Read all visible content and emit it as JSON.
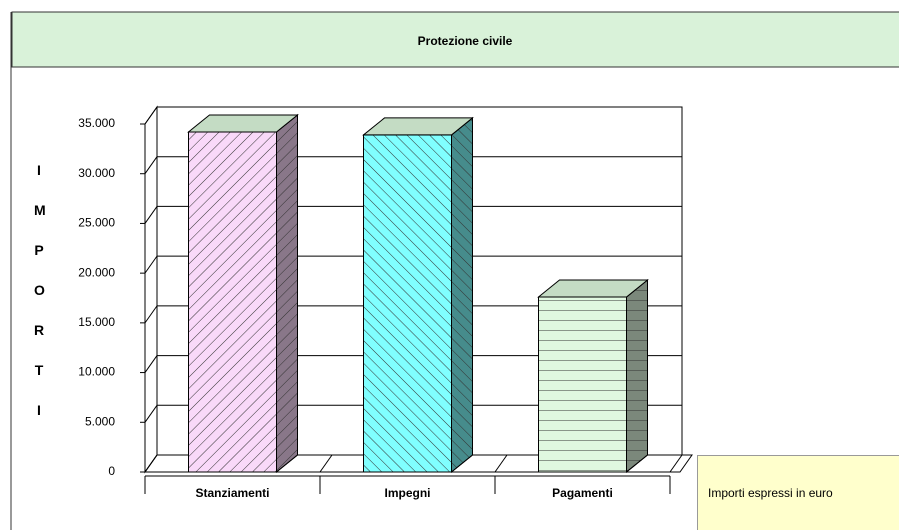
{
  "chart_data": {
    "type": "bar3d",
    "title": "Protezione civile",
    "y_label": "IMPORTI",
    "note": "Importi espressi in euro",
    "categories": [
      "Stanziamenti",
      "Impegni",
      "Pagamenti"
    ],
    "values": [
      34200,
      33900,
      17600
    ],
    "colors": [
      "#f9d9f9",
      "#80ffff",
      "#e0f8e0"
    ],
    "ylim": [
      0,
      35000
    ],
    "yticks": [
      0,
      {
        "value": 5000,
        "label": "5.000"
      },
      {
        "value": 10000,
        "label": "10.000"
      },
      {
        "value": 15000,
        "label": "15.000"
      },
      {
        "value": 20000,
        "label": "20.000"
      },
      {
        "value": 25000,
        "label": "25.000"
      },
      {
        "value": 30000,
        "label": "30.000"
      },
      {
        "value": 35000,
        "label": "35.000"
      }
    ],
    "grid": true
  }
}
